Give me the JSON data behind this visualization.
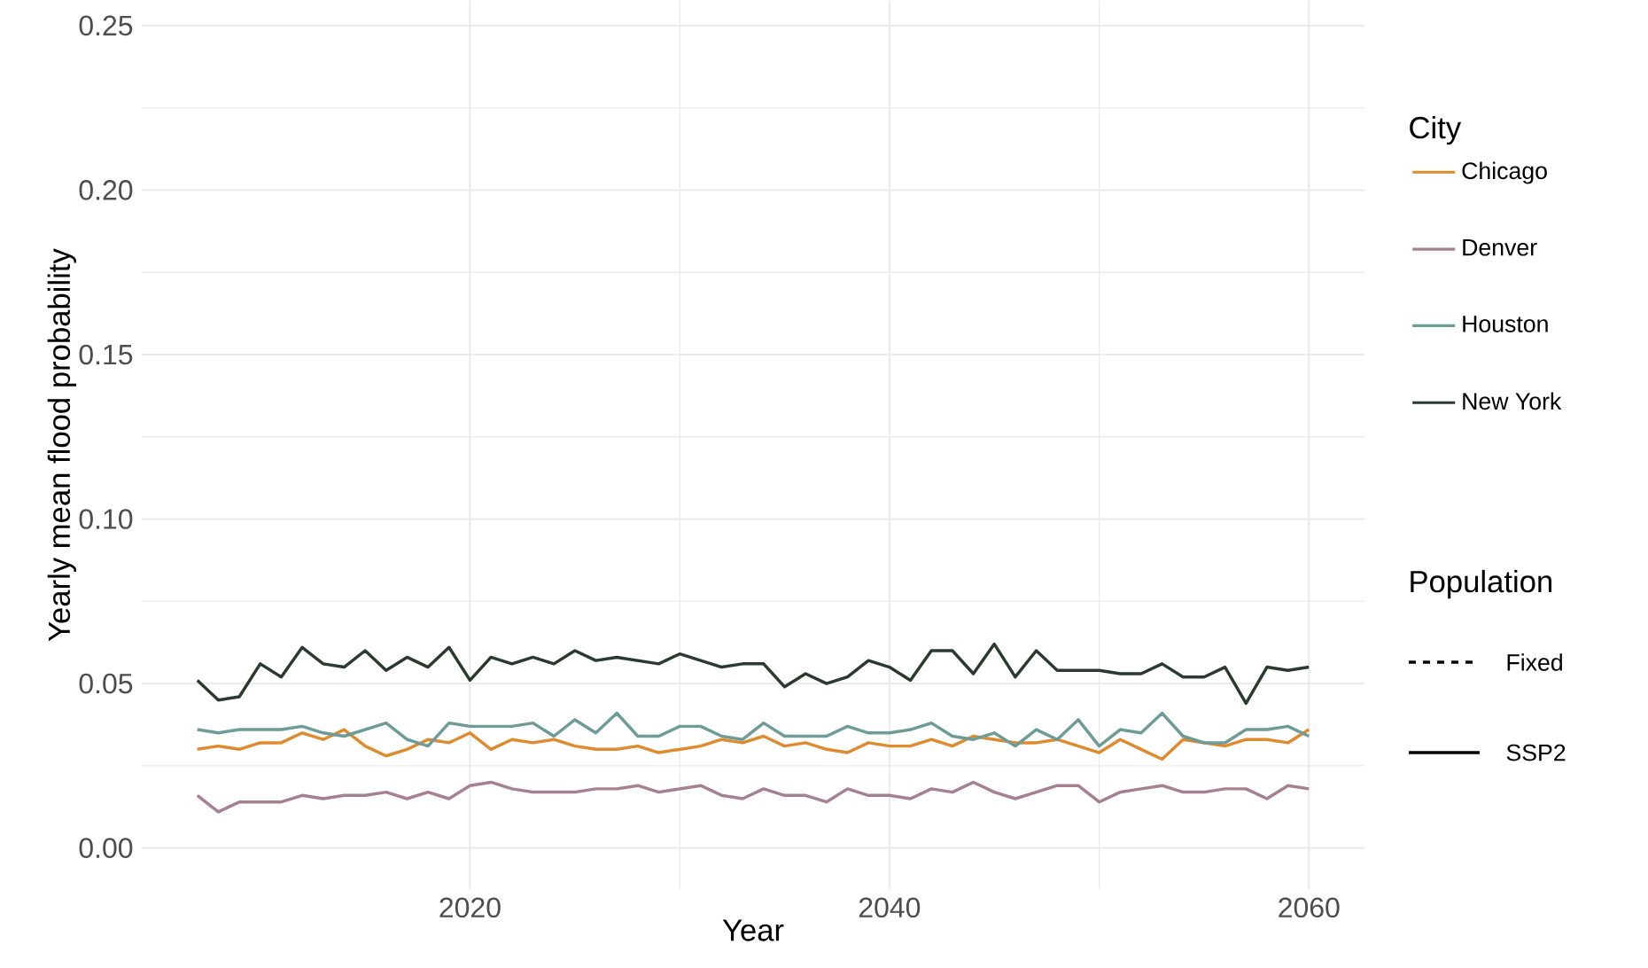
{
  "chart_data": {
    "type": "line",
    "xlabel": "Year",
    "ylabel": "Yearly mean flood probability",
    "legend_title": "City",
    "legend": "right",
    "grid": true,
    "line_style": "solid",
    "marker": "none",
    "x": [
      2007,
      2008,
      2009,
      2010,
      2011,
      2012,
      2013,
      2014,
      2015,
      2016,
      2017,
      2018,
      2019,
      2020,
      2021,
      2022,
      2023,
      2024,
      2025,
      2026,
      2027,
      2028,
      2029,
      2030,
      2031,
      2032,
      2033,
      2034,
      2035,
      2036,
      2037,
      2038,
      2039,
      2040,
      2041,
      2042,
      2043,
      2044,
      2045,
      2046,
      2047,
      2048,
      2049,
      2050,
      2051,
      2052,
      2053,
      2054,
      2055,
      2056,
      2057,
      2058,
      2059,
      2060
    ],
    "xlim": [
      2004.35,
      2062.65
    ],
    "xticks": [
      2020,
      2040,
      2060
    ],
    "ylim": [
      -0.0125,
      0.2575
    ],
    "yticks": [
      {
        "value": 0,
        "label": "0.00"
      },
      {
        "value": 0.05,
        "label": "0.05"
      },
      {
        "value": 0.1,
        "label": "0.10"
      },
      {
        "value": 0.15,
        "label": "0.15"
      },
      {
        "value": 0.2,
        "label": "0.20"
      },
      {
        "value": 0.25,
        "label": "0.25"
      }
    ],
    "series": [
      {
        "name": "Chicago",
        "color": "#e08a2e",
        "values": [
          0.03,
          0.031,
          0.03,
          0.032,
          0.032,
          0.035,
          0.033,
          0.036,
          0.031,
          0.028,
          0.03,
          0.033,
          0.032,
          0.035,
          0.03,
          0.033,
          0.032,
          0.033,
          0.031,
          0.03,
          0.03,
          0.031,
          0.029,
          0.03,
          0.031,
          0.033,
          0.032,
          0.034,
          0.031,
          0.032,
          0.03,
          0.029,
          0.032,
          0.031,
          0.031,
          0.033,
          0.031,
          0.034,
          0.033,
          0.032,
          0.032,
          0.033,
          0.031,
          0.029,
          0.033,
          0.03,
          0.027,
          0.033,
          0.032,
          0.031,
          0.033,
          0.033,
          0.032,
          0.036
        ]
      },
      {
        "name": "Denver",
        "color": "#a77f93",
        "values": [
          0.016,
          0.011,
          0.014,
          0.014,
          0.014,
          0.016,
          0.015,
          0.016,
          0.016,
          0.017,
          0.015,
          0.017,
          0.015,
          0.019,
          0.02,
          0.018,
          0.017,
          0.017,
          0.017,
          0.018,
          0.018,
          0.019,
          0.017,
          0.018,
          0.019,
          0.016,
          0.015,
          0.018,
          0.016,
          0.016,
          0.014,
          0.018,
          0.016,
          0.016,
          0.015,
          0.018,
          0.017,
          0.02,
          0.017,
          0.015,
          0.017,
          0.019,
          0.019,
          0.014,
          0.017,
          0.018,
          0.019,
          0.017,
          0.017,
          0.018,
          0.018,
          0.015,
          0.019,
          0.018
        ]
      },
      {
        "name": "Houston",
        "color": "#6d9c97",
        "values": [
          0.036,
          0.035,
          0.036,
          0.036,
          0.036,
          0.037,
          0.035,
          0.034,
          0.036,
          0.038,
          0.033,
          0.031,
          0.038,
          0.037,
          0.037,
          0.037,
          0.038,
          0.034,
          0.039,
          0.035,
          0.041,
          0.034,
          0.034,
          0.037,
          0.037,
          0.034,
          0.033,
          0.038,
          0.034,
          0.034,
          0.034,
          0.037,
          0.035,
          0.035,
          0.036,
          0.038,
          0.034,
          0.033,
          0.035,
          0.031,
          0.036,
          0.033,
          0.039,
          0.031,
          0.036,
          0.035,
          0.041,
          0.034,
          0.032,
          0.032,
          0.036,
          0.036,
          0.037,
          0.034
        ]
      },
      {
        "name": "New York",
        "color": "#2b3a2e",
        "values": [
          0.051,
          0.045,
          0.046,
          0.056,
          0.052,
          0.061,
          0.056,
          0.055,
          0.06,
          0.054,
          0.058,
          0.055,
          0.061,
          0.051,
          0.058,
          0.056,
          0.058,
          0.056,
          0.06,
          0.057,
          0.058,
          0.057,
          0.056,
          0.059,
          0.057,
          0.055,
          0.056,
          0.056,
          0.049,
          0.053,
          0.05,
          0.052,
          0.057,
          0.055,
          0.051,
          0.06,
          0.06,
          0.053,
          0.062,
          0.052,
          0.06,
          0.054,
          0.054,
          0.054,
          0.053,
          0.053,
          0.056,
          0.052,
          0.052,
          0.055,
          0.044,
          0.055,
          0.054,
          0.055
        ]
      }
    ],
    "annotations": [
      "Population",
      "Fixed",
      "SSP2"
    ]
  }
}
